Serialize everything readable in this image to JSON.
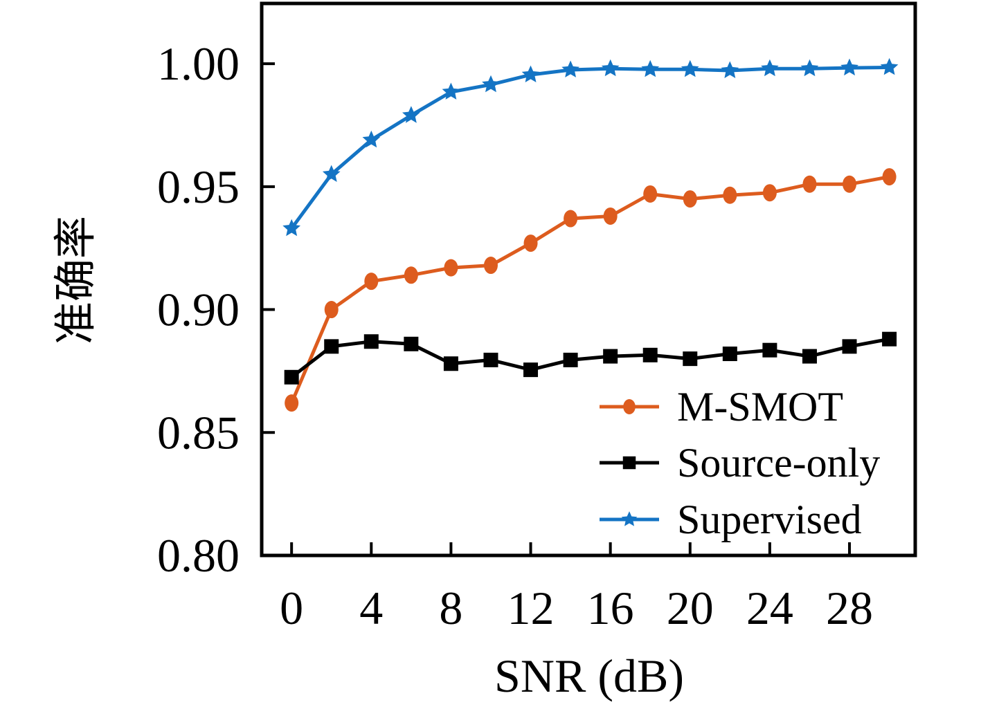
{
  "figure": {
    "background": "#ffffff",
    "frame_color": "#000000"
  },
  "chart_data": {
    "type": "line",
    "title": "",
    "xlabel": "SNR (dB)",
    "ylabel": "准确率",
    "x": [
      0,
      2,
      4,
      6,
      8,
      10,
      12,
      14,
      16,
      18,
      20,
      22,
      24,
      26,
      28,
      30
    ],
    "series": [
      {
        "name": "M-SMOT",
        "color": "#dd5c1e",
        "marker": "ellipse",
        "values": [
          0.862,
          0.9,
          0.9115,
          0.914,
          0.917,
          0.918,
          0.927,
          0.937,
          0.938,
          0.947,
          0.945,
          0.9465,
          0.9475,
          0.951,
          0.951,
          0.954
        ]
      },
      {
        "name": "Source-only",
        "color": "#000000",
        "marker": "square",
        "values": [
          0.8725,
          0.885,
          0.887,
          0.886,
          0.878,
          0.8795,
          0.8755,
          0.8795,
          0.881,
          0.8815,
          0.88,
          0.882,
          0.8835,
          0.881,
          0.885,
          0.888
        ]
      },
      {
        "name": "Supervised",
        "color": "#1474c4",
        "marker": "star",
        "values": [
          0.933,
          0.955,
          0.969,
          0.979,
          0.9885,
          0.9915,
          0.9955,
          0.9975,
          0.998,
          0.9977,
          0.9977,
          0.9972,
          0.998,
          0.998,
          0.9983,
          0.9985
        ]
      }
    ],
    "xticks": [
      0,
      4,
      8,
      12,
      16,
      20,
      24,
      28
    ],
    "xtick_labels": [
      "0",
      "4",
      "8",
      "12",
      "16",
      "20",
      "24",
      "28"
    ],
    "yticks": [
      0.8,
      0.85,
      0.9,
      0.95,
      1.0
    ],
    "ytick_labels": [
      "0.80",
      "0.85",
      "0.90",
      "0.95",
      "1.00"
    ],
    "xlim": [
      -1.5,
      31.3
    ],
    "ylim": [
      0.8,
      1.0245
    ],
    "grid": false,
    "legend_position": "lower right",
    "legend_frame": false
  }
}
